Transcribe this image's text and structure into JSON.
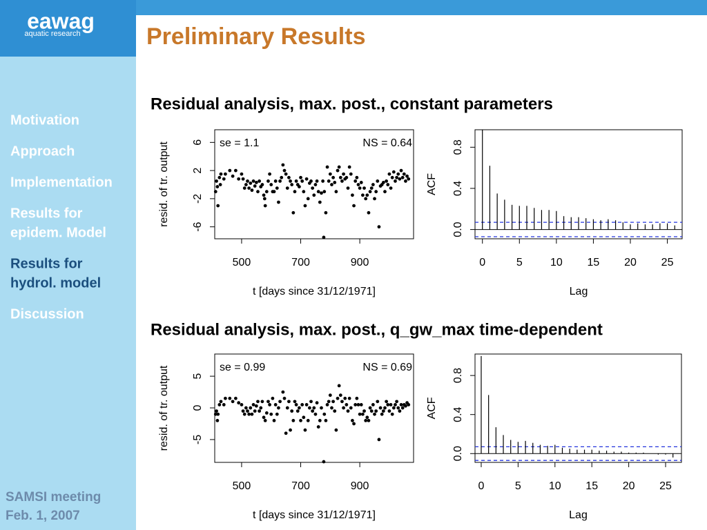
{
  "slide": {
    "logo": "eawag",
    "logo_sub": "aquatic research",
    "title": "Preliminary Results",
    "nav": [
      [
        "Motivation"
      ],
      [
        "Approach"
      ],
      [
        "Implementation"
      ],
      [
        "Results for",
        "epidem. Model"
      ],
      [
        "Results for",
        "hydrol. model"
      ],
      [
        "Discussion"
      ]
    ],
    "active": 4,
    "footer": [
      "SAMSI meeting",
      "Feb. 1, 2007"
    ],
    "sections": [
      "Residual analysis, max. post., constant parameters",
      "Residual analysis, max. post., q_gw_max time-dependent"
    ]
  },
  "chart_data": [
    {
      "type": "scatter",
      "xlabel": "t [days since 31/12/1971]",
      "ylabel": "resid. of tr. output",
      "annotations": [
        "se = 1.1",
        "NS = 0.64"
      ],
      "color": "#000000",
      "xlim": [
        409,
        1082
      ],
      "xticks": [
        500,
        700,
        900
      ],
      "ylim": [
        -7.7,
        7.8
      ],
      "yticks": [
        -6,
        -2,
        2,
        6
      ],
      "x": [
        412,
        415,
        418,
        420,
        425,
        428,
        430,
        440,
        445,
        460,
        470,
        480,
        490,
        500,
        505,
        510,
        515,
        520,
        525,
        530,
        535,
        540,
        545,
        550,
        555,
        560,
        565,
        570,
        575,
        578,
        580,
        585,
        590,
        595,
        600,
        605,
        610,
        615,
        620,
        625,
        630,
        635,
        640,
        645,
        650,
        655,
        660,
        665,
        670,
        675,
        680,
        685,
        690,
        695,
        700,
        705,
        710,
        715,
        720,
        725,
        730,
        735,
        740,
        745,
        750,
        755,
        760,
        765,
        770,
        775,
        778,
        780,
        785,
        790,
        795,
        800,
        805,
        810,
        815,
        820,
        825,
        830,
        835,
        840,
        845,
        850,
        855,
        860,
        865,
        870,
        875,
        880,
        885,
        890,
        895,
        900,
        905,
        910,
        915,
        920,
        925,
        930,
        935,
        940,
        945,
        950,
        955,
        960,
        965,
        970,
        975,
        980,
        985,
        990,
        995,
        1000,
        1005,
        1010,
        1015,
        1020,
        1025,
        1030,
        1035,
        1040,
        1045,
        1050,
        1055,
        1060,
        1065
      ],
      "values": [
        -1,
        0.5,
        -0.3,
        -3,
        1,
        0,
        1.5,
        0.8,
        1.5,
        2,
        1.2,
        2,
        0.8,
        1.5,
        0.8,
        -0.5,
        0,
        0.5,
        -0.5,
        0.2,
        -0.8,
        0.5,
        -0.2,
        0.3,
        -1,
        0.5,
        -0.3,
        0,
        -1.5,
        -2,
        -3,
        -1,
        0.5,
        1.5,
        0,
        -1,
        -1,
        0.5,
        -0.5,
        -2.5,
        0.5,
        1,
        2.8,
        2,
        1.5,
        -0.5,
        1,
        0.5,
        0,
        -4,
        -1,
        0.5,
        0,
        -0.3,
        1,
        0.5,
        -1,
        -3,
        0.8,
        -2,
        0.2,
        0.5,
        -0.5,
        -1.5,
        0,
        0.5,
        -1,
        -2.5,
        -1.2,
        0.5,
        -7.5,
        -1,
        -4,
        2.5,
        0.5,
        1.5,
        0,
        1,
        0.3,
        -1,
        2,
        2.5,
        1,
        0.5,
        1.5,
        0.8,
        1,
        -0.5,
        2.5,
        1.5,
        -1.5,
        -3,
        0.5,
        1,
        0,
        -0.5,
        0.3,
        -1.5,
        -0.5,
        -2,
        -1.5,
        -4,
        -1,
        -0.5,
        0,
        -2,
        -1,
        0.5,
        -6,
        -0.2,
        0,
        0.3,
        -1,
        0.5,
        0,
        1.5,
        -0.5,
        1,
        1.8,
        0.5,
        1,
        1.5,
        0.8,
        2,
        1,
        1.5,
        0.5,
        1.2,
        0.8
      ]
    },
    {
      "type": "acf",
      "xlabel": "Lag",
      "ylabel": "ACF",
      "color": "#000000",
      "ci": 0.07,
      "ci_color": "#2233dd",
      "xlim": [
        -1,
        27
      ],
      "xticks": [
        0,
        5,
        10,
        15,
        20,
        25
      ],
      "ylim": [
        -0.09,
        0.97
      ],
      "yticks": [
        {
          "value": 0,
          "label": "0.0"
        },
        0.4,
        0.8
      ],
      "x": [
        0,
        1,
        2,
        3,
        4,
        5,
        6,
        7,
        8,
        9,
        10,
        11,
        12,
        13,
        14,
        15,
        16,
        17,
        18,
        19,
        20,
        21,
        22,
        23,
        24,
        25,
        26
      ],
      "values": [
        1,
        0.62,
        0.35,
        0.29,
        0.24,
        0.23,
        0.23,
        0.21,
        0.19,
        0.19,
        0.18,
        0.13,
        0.12,
        0.12,
        0.11,
        0.1,
        0.09,
        0.1,
        0.09,
        0.07,
        0.05,
        0.06,
        0.05,
        0.05,
        0.06,
        0.06,
        0.04
      ]
    },
    {
      "type": "scatter",
      "xlabel": "t [days since 31/12/1971]",
      "ylabel": "resid. of tr. output",
      "annotations": [
        "se = 0.99",
        "NS = 0.69"
      ],
      "color": "#000000",
      "xlim": [
        409,
        1082
      ],
      "xticks": [
        500,
        700,
        900
      ],
      "ylim": [
        -8.6,
        8.5
      ],
      "yticks": [
        -5,
        0,
        5
      ],
      "x": [
        412,
        415,
        418,
        420,
        425,
        430,
        440,
        445,
        460,
        470,
        480,
        490,
        500,
        505,
        510,
        515,
        520,
        525,
        530,
        535,
        540,
        545,
        550,
        555,
        560,
        565,
        570,
        575,
        580,
        585,
        590,
        595,
        600,
        605,
        610,
        615,
        620,
        625,
        630,
        640,
        645,
        650,
        655,
        660,
        665,
        670,
        675,
        680,
        685,
        690,
        695,
        700,
        705,
        710,
        715,
        720,
        725,
        730,
        735,
        740,
        745,
        750,
        755,
        760,
        765,
        770,
        778,
        780,
        785,
        790,
        795,
        800,
        805,
        810,
        815,
        820,
        825,
        830,
        835,
        840,
        845,
        850,
        855,
        860,
        865,
        870,
        875,
        880,
        885,
        890,
        895,
        900,
        905,
        910,
        915,
        920,
        925,
        930,
        935,
        940,
        945,
        950,
        955,
        960,
        965,
        970,
        975,
        980,
        985,
        990,
        995,
        1000,
        1005,
        1010,
        1015,
        1020,
        1025,
        1030,
        1035,
        1040,
        1045,
        1050,
        1055,
        1060,
        1065
      ],
      "values": [
        -1,
        -0.5,
        -2,
        -1,
        0.5,
        1,
        0.5,
        1.5,
        1.5,
        1,
        1.5,
        0.8,
        0.5,
        -0.5,
        -1,
        0,
        -0.5,
        -1,
        0,
        -1,
        0.5,
        -0.5,
        0.3,
        1,
        -0.5,
        0,
        1,
        -1.5,
        -2,
        -0.8,
        1,
        0.5,
        -1,
        1.5,
        -2,
        0.5,
        -1,
        0,
        1,
        2.5,
        1.5,
        -4,
        0,
        1,
        -3.5,
        -0.5,
        -2,
        1,
        0.5,
        -0.5,
        0,
        -2,
        0.5,
        -1.5,
        -3.5,
        0.5,
        -2,
        0,
        1,
        -0.5,
        0,
        -1,
        0.8,
        -3,
        -2,
        0,
        -8.5,
        -1,
        -2,
        0.5,
        1,
        2,
        0,
        1,
        -0.5,
        -3.5,
        1.5,
        3.5,
        2,
        1,
        0,
        1.5,
        0.5,
        -0.5,
        1.5,
        0,
        -2,
        -2.5,
        0.5,
        1.5,
        0.5,
        -1,
        0.5,
        -1,
        -0.5,
        -2,
        -1.5,
        -2,
        0,
        -0.5,
        0.5,
        -1,
        -0.5,
        1,
        -5,
        0,
        -1,
        -0.5,
        0,
        1,
        0.5,
        -0.5,
        0.5,
        -1,
        0,
        0.5,
        1,
        0,
        -0.5,
        0.5,
        0,
        0.5,
        0.3,
        0.8,
        0.5
      ]
    },
    {
      "type": "acf",
      "xlabel": "Lag",
      "ylabel": "ACF",
      "color": "#000000",
      "ci": 0.07,
      "ci_color": "#2233dd",
      "xlim": [
        -0.84,
        27.15
      ],
      "xticks": [
        0,
        5,
        10,
        15,
        20,
        25
      ],
      "ylim": [
        -0.09,
        1.02
      ],
      "yticks": [
        {
          "value": 0,
          "label": "0.0"
        },
        0.4,
        0.8
      ],
      "x": [
        0,
        1,
        2,
        3,
        4,
        5,
        6,
        7,
        8,
        9,
        10,
        11,
        12,
        13,
        14,
        15,
        16,
        17,
        18,
        19,
        20,
        21,
        22,
        23,
        24,
        25,
        26
      ],
      "values": [
        1,
        0.6,
        0.27,
        0.19,
        0.14,
        0.12,
        0.13,
        0.11,
        0.09,
        0.08,
        0.09,
        0.06,
        0.05,
        0.04,
        0.04,
        0.04,
        0.03,
        0.03,
        0.02,
        0.02,
        0.01,
        0.01,
        0.01,
        0,
        -0.01,
        -0.01,
        -0.04
      ]
    }
  ]
}
